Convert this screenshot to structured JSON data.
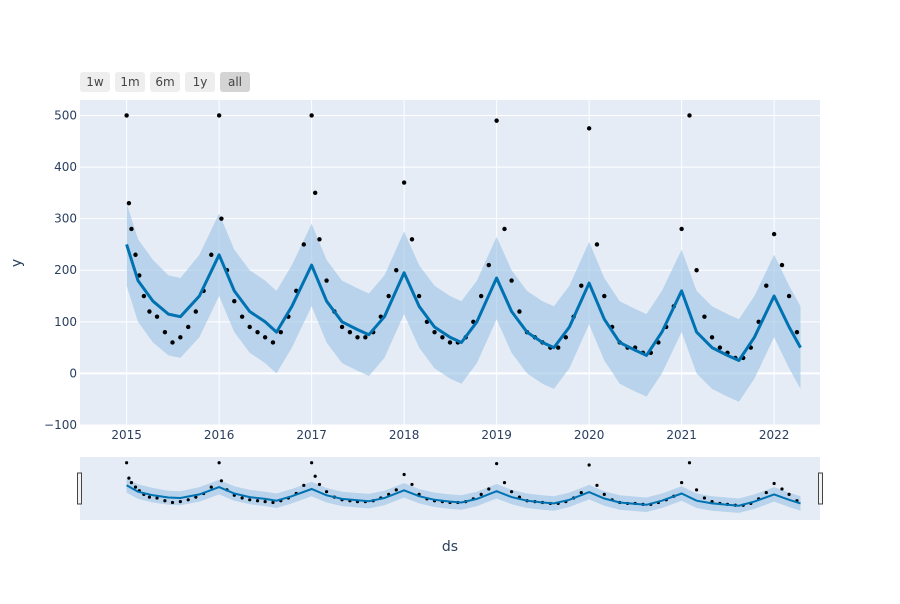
{
  "range_selector": {
    "buttons": [
      {
        "label": "1w",
        "active": false
      },
      {
        "label": "1m",
        "active": false
      },
      {
        "label": "6m",
        "active": false
      },
      {
        "label": "1y",
        "active": false
      },
      {
        "label": "all",
        "active": true
      }
    ]
  },
  "colors": {
    "plot_bg": "#e5ecf6",
    "grid": "#ffffff",
    "points": "#000000",
    "trend": "#0072B2",
    "band": "#9ac3e4",
    "button_bg": "#eeeeee",
    "button_active_bg": "#d4d4d4",
    "axis_text": "#2a3f5f"
  },
  "chart_data": {
    "type": "scatter",
    "title": "",
    "xlabel": "ds",
    "ylabel": "y",
    "xlim": [
      "2014-07-01",
      "2022-07-01"
    ],
    "ylim": [
      -100,
      530
    ],
    "x_ticks": [
      "2015",
      "2016",
      "2017",
      "2018",
      "2019",
      "2020",
      "2021",
      "2022"
    ],
    "y_ticks": [
      -100,
      0,
      100,
      200,
      300,
      400,
      500
    ],
    "grid": true,
    "legend": "none",
    "rangeslider": true,
    "series": [
      {
        "kind": "observed points (approx. readings)",
        "x": [
          "2015-01-01",
          "2015-01-10",
          "2015-01-20",
          "2015-02-05",
          "2015-02-20",
          "2015-03-10",
          "2015-04-01",
          "2015-05-01",
          "2015-06-01",
          "2015-07-01",
          "2015-08-01",
          "2015-09-01",
          "2015-10-01",
          "2015-11-01",
          "2015-12-01",
          "2016-01-01",
          "2016-01-10",
          "2016-02-01",
          "2016-03-01",
          "2016-04-01",
          "2016-05-01",
          "2016-06-01",
          "2016-07-01",
          "2016-08-01",
          "2016-09-01",
          "2016-10-01",
          "2016-11-01",
          "2016-12-01",
          "2017-01-01",
          "2017-01-15",
          "2017-02-01",
          "2017-03-01",
          "2017-04-01",
          "2017-05-01",
          "2017-06-01",
          "2017-07-01",
          "2017-08-01",
          "2017-09-01",
          "2017-10-01",
          "2017-11-01",
          "2017-12-01",
          "2018-01-01",
          "2018-02-01",
          "2018-03-01",
          "2018-04-01",
          "2018-05-01",
          "2018-06-01",
          "2018-07-01",
          "2018-08-01",
          "2018-09-01",
          "2018-10-01",
          "2018-11-01",
          "2018-12-01",
          "2019-01-01",
          "2019-02-01",
          "2019-03-01",
          "2019-04-01",
          "2019-05-01",
          "2019-06-01",
          "2019-07-01",
          "2019-08-01",
          "2019-09-01",
          "2019-10-01",
          "2019-11-01",
          "2019-12-01",
          "2020-01-01",
          "2020-02-01",
          "2020-03-01",
          "2020-04-01",
          "2020-05-01",
          "2020-06-01",
          "2020-07-01",
          "2020-08-01",
          "2020-09-01",
          "2020-10-01",
          "2020-11-01",
          "2020-12-01",
          "2021-01-01",
          "2021-02-01",
          "2021-03-01",
          "2021-04-01",
          "2021-05-01",
          "2021-06-01",
          "2021-07-01",
          "2021-08-01",
          "2021-09-01",
          "2021-10-01",
          "2021-11-01",
          "2021-12-01",
          "2022-01-01",
          "2022-02-01",
          "2022-03-01",
          "2022-04-01"
        ],
        "y": [
          500,
          330,
          280,
          230,
          190,
          150,
          120,
          110,
          80,
          60,
          70,
          90,
          120,
          160,
          230,
          500,
          300,
          200,
          140,
          110,
          90,
          80,
          70,
          60,
          80,
          110,
          160,
          250,
          500,
          350,
          260,
          180,
          120,
          90,
          80,
          70,
          70,
          80,
          110,
          150,
          200,
          370,
          260,
          150,
          100,
          80,
          70,
          60,
          60,
          70,
          100,
          150,
          210,
          490,
          280,
          180,
          120,
          80,
          70,
          60,
          50,
          50,
          70,
          110,
          170,
          475,
          250,
          150,
          90,
          60,
          50,
          50,
          40,
          40,
          60,
          90,
          130,
          280,
          500,
          200,
          110,
          70,
          50,
          40,
          30,
          30,
          50,
          100,
          170,
          270,
          210,
          150,
          80
        ]
      },
      {
        "kind": "forecast trend line",
        "x": [
          "2015-01-01",
          "2015-02-15",
          "2015-04-15",
          "2015-06-15",
          "2015-08-01",
          "2015-10-15",
          "2016-01-01",
          "2016-03-01",
          "2016-05-01",
          "2016-07-01",
          "2016-08-15",
          "2016-10-15",
          "2017-01-01",
          "2017-03-01",
          "2017-05-01",
          "2017-07-01",
          "2017-08-15",
          "2017-10-15",
          "2018-01-01",
          "2018-03-01",
          "2018-05-01",
          "2018-07-01",
          "2018-08-15",
          "2018-10-15",
          "2019-01-01",
          "2019-03-01",
          "2019-05-01",
          "2019-07-01",
          "2019-08-15",
          "2019-10-15",
          "2020-01-01",
          "2020-03-01",
          "2020-05-01",
          "2020-07-01",
          "2020-08-15",
          "2020-10-15",
          "2021-01-01",
          "2021-03-01",
          "2021-05-01",
          "2021-07-01",
          "2021-08-15",
          "2021-10-15",
          "2022-01-01",
          "2022-03-01",
          "2022-04-15"
        ],
        "y": [
          250,
          180,
          140,
          115,
          110,
          150,
          230,
          160,
          120,
          100,
          80,
          130,
          210,
          140,
          100,
          85,
          75,
          110,
          195,
          130,
          90,
          70,
          60,
          100,
          185,
          120,
          80,
          60,
          50,
          90,
          175,
          105,
          60,
          45,
          35,
          80,
          160,
          80,
          50,
          35,
          25,
          70,
          150,
          90,
          50
        ]
      },
      {
        "kind": "uncertainty band upper",
        "values": [
          330,
          260,
          220,
          190,
          185,
          230,
          310,
          240,
          200,
          180,
          160,
          210,
          290,
          220,
          180,
          165,
          155,
          190,
          275,
          210,
          170,
          150,
          140,
          180,
          265,
          200,
          160,
          140,
          130,
          170,
          255,
          185,
          140,
          125,
          115,
          160,
          240,
          160,
          130,
          115,
          105,
          150,
          230,
          170,
          130
        ]
      },
      {
        "kind": "uncertainty band lower",
        "values": [
          170,
          100,
          60,
          35,
          30,
          70,
          150,
          80,
          40,
          20,
          0,
          50,
          130,
          60,
          20,
          5,
          -5,
          30,
          115,
          50,
          10,
          -10,
          -20,
          20,
          105,
          40,
          0,
          -20,
          -30,
          10,
          95,
          25,
          -20,
          -35,
          -45,
          0,
          80,
          0,
          -30,
          -45,
          -55,
          -10,
          70,
          10,
          -30
        ]
      }
    ]
  }
}
